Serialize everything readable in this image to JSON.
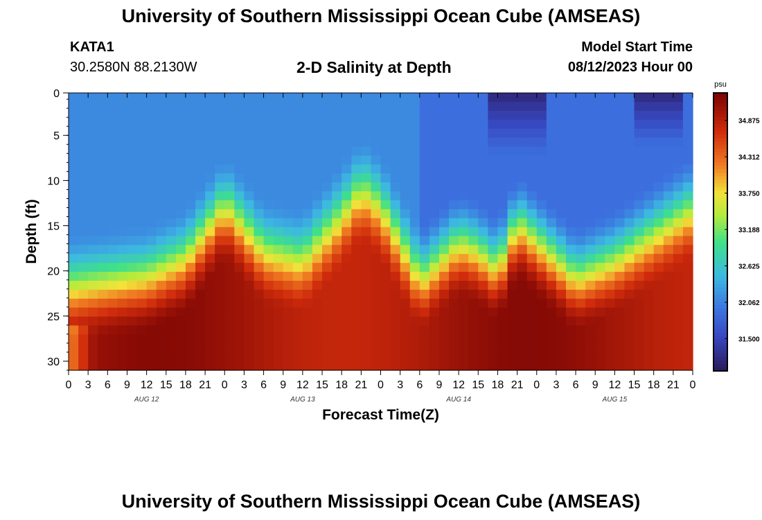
{
  "page": {
    "title": "University of Southern Mississippi Ocean Cube (AMSEAS)",
    "footer_title": "University of Southern Mississippi Ocean Cube (AMSEAS)",
    "station": "KATA1",
    "coords": "30.2580N  88.2130W",
    "subtitle": "2-D Salinity at Depth",
    "start_label": "Model Start Time",
    "start_value": "08/12/2023 Hour 00"
  },
  "chart_data": {
    "type": "heatmap",
    "title": "2-D Salinity at Depth",
    "xlabel": "Forecast Time(Z)",
    "ylabel": "Depth (ft)",
    "x_range_hours": [
      0,
      96
    ],
    "ylim": [
      0,
      31
    ],
    "y_ticks": [
      0,
      5,
      10,
      15,
      20,
      25,
      30
    ],
    "x_tick_labels": [
      "0",
      "3",
      "6",
      "9",
      "12",
      "15",
      "18",
      "21",
      "0",
      "3",
      "6",
      "9",
      "12",
      "15",
      "18",
      "21",
      "0",
      "3",
      "6",
      "9",
      "12",
      "15",
      "18",
      "21",
      "0",
      "3",
      "6",
      "9",
      "12",
      "15",
      "18",
      "21",
      "0"
    ],
    "day_labels": [
      "AUG 12",
      "AUG 13",
      "AUG 14",
      "AUG 15"
    ],
    "colorbar": {
      "unit": "psu",
      "min": 31.0,
      "max": 35.3,
      "tick_values": [
        "34.875",
        "34.312",
        "33.750",
        "33.188",
        "32.625",
        "32.062",
        "31.500"
      ]
    },
    "interface_depth_ft": [
      {
        "hour": 0,
        "depth": 22
      },
      {
        "hour": 12,
        "depth": 21
      },
      {
        "hour": 18,
        "depth": 19
      },
      {
        "hour": 24,
        "depth": 13
      },
      {
        "hour": 30,
        "depth": 18
      },
      {
        "hour": 36,
        "depth": 19
      },
      {
        "hour": 42,
        "depth": 14
      },
      {
        "hour": 45,
        "depth": 11
      },
      {
        "hour": 48,
        "depth": 13
      },
      {
        "hour": 54,
        "depth": 21
      },
      {
        "hour": 60,
        "depth": 17
      },
      {
        "hour": 63,
        "depth": 18
      },
      {
        "hour": 66,
        "depth": 20
      },
      {
        "hour": 69,
        "depth": 15
      },
      {
        "hour": 72,
        "depth": 17
      },
      {
        "hour": 78,
        "depth": 21
      },
      {
        "hour": 84,
        "depth": 19
      },
      {
        "hour": 90,
        "depth": 16
      },
      {
        "hour": 96,
        "depth": 13
      }
    ],
    "colors": {
      "low": "#2b1a5a",
      "surface": "#3c73e0",
      "mid": "#3ee08a",
      "yellow": "#f2e23a",
      "orange": "#f07b22",
      "high": "#7a0404"
    }
  }
}
